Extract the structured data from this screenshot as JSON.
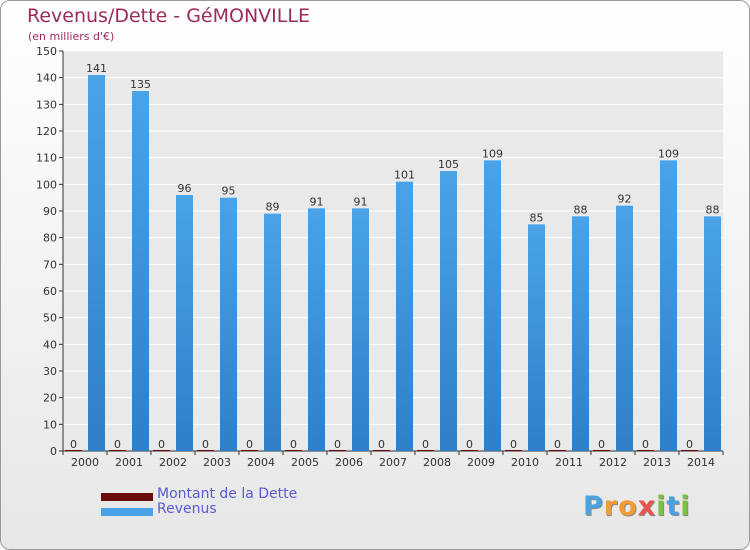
{
  "title": "Revenus/Dette - GéMONVILLE",
  "subtitle": "(en milliers d'€)",
  "colors": {
    "dette": "#6b0b0b",
    "revenus": "#4aa3e6",
    "revenus_dark": "#2f7fc8",
    "title": "#9c2b5a",
    "legend_text": "#5a5ad6"
  },
  "chart_data": {
    "type": "bar",
    "title": "Revenus/Dette - GéMONVILLE",
    "ylabel": "(en milliers d'€)",
    "xlabel": "",
    "ylim": [
      0,
      150
    ],
    "yticks": [
      0,
      10,
      20,
      30,
      40,
      50,
      60,
      70,
      80,
      90,
      100,
      110,
      120,
      130,
      140,
      150
    ],
    "grid": true,
    "categories": [
      "2000",
      "2001",
      "2002",
      "2003",
      "2004",
      "2005",
      "2006",
      "2007",
      "2008",
      "2009",
      "2010",
      "2011",
      "2012",
      "2013",
      "2014"
    ],
    "series": [
      {
        "name": "Montant de la Dette",
        "values": [
          0,
          0,
          0,
          0,
          0,
          0,
          0,
          0,
          0,
          0,
          0,
          0,
          0,
          0,
          0
        ]
      },
      {
        "name": "Revenus",
        "values": [
          141,
          135,
          96,
          95,
          89,
          91,
          91,
          101,
          105,
          109,
          85,
          88,
          92,
          109,
          88
        ]
      }
    ],
    "legend": "bottom-left"
  },
  "legend": {
    "dette_label": "Montant de la Dette",
    "revenus_label": "Revenus"
  },
  "logo": {
    "text": "Proxiti",
    "letters": [
      "P",
      "r",
      "o",
      "x",
      "i",
      "t",
      "i"
    ]
  }
}
